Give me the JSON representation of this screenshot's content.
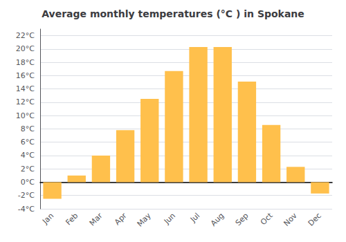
{
  "chart_data": {
    "type": "bar",
    "title": "Average monthly temperatures (°C ) in Spokane",
    "categories": [
      "Jan",
      "Feb",
      "Mar",
      "Apr",
      "May",
      "Jun",
      "Jul",
      "Aug",
      "Sep",
      "Oct",
      "Nov",
      "Dec"
    ],
    "values": [
      -2.5,
      1.0,
      4.0,
      7.8,
      12.5,
      16.7,
      20.3,
      20.3,
      15.1,
      8.6,
      2.3,
      -1.7
    ],
    "color": "#FFC04C",
    "ylim": [
      -4,
      23
    ],
    "yticks": [
      {
        "value": -4,
        "label": "-4°C"
      },
      {
        "value": -2,
        "label": "-2°C"
      },
      {
        "value": 0,
        "label": "0°C"
      },
      {
        "value": 2,
        "label": "2°C"
      },
      {
        "value": 4,
        "label": "4°C"
      },
      {
        "value": 6,
        "label": "6°C"
      },
      {
        "value": 8,
        "label": "8°C"
      },
      {
        "value": 10,
        "label": "10°C"
      },
      {
        "value": 12,
        "label": "12°C"
      },
      {
        "value": 14,
        "label": "14°C"
      },
      {
        "value": 16,
        "label": "16°C"
      },
      {
        "value": 18,
        "label": "18°C"
      },
      {
        "value": 20,
        "label": "20°C"
      },
      {
        "value": 22,
        "label": "22°C"
      }
    ],
    "grid": true
  }
}
